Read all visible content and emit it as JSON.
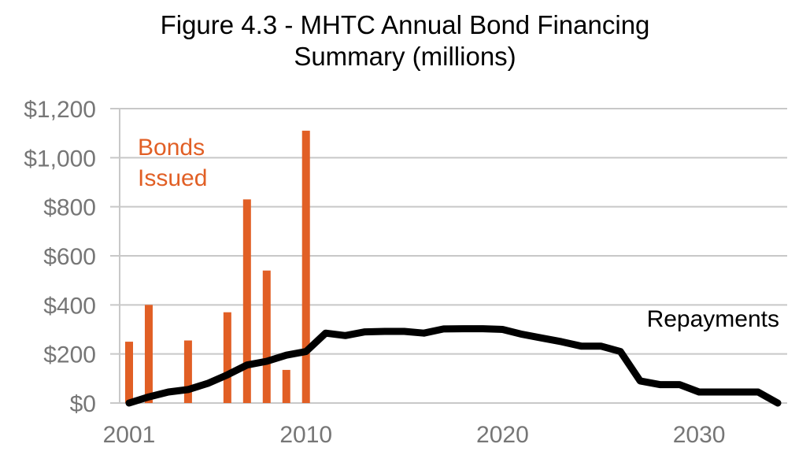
{
  "chart_data": {
    "type": "bar+line",
    "title_lines": [
      "Figure 4.3 - MHTC Annual Bond Financing",
      "Summary (millions)"
    ],
    "xlabel": "",
    "ylabel": "",
    "xlim": [
      2001,
      2034
    ],
    "ylim": [
      0,
      1200
    ],
    "y_ticks": [
      0,
      200,
      400,
      600,
      800,
      1000,
      1200
    ],
    "y_tick_labels": [
      "$0",
      "$200",
      "$400",
      "$600",
      "$800",
      "$1,000",
      "$1,200"
    ],
    "x_ticks": [
      2001,
      2010,
      2020,
      2030
    ],
    "x_tick_labels": [
      "2001",
      "2010",
      "2020",
      "2030"
    ],
    "grid": true,
    "legend": "none",
    "colors": {
      "bonds": "#e15f25",
      "repayments": "#000000",
      "grid": "#c8c8c8",
      "ticks": "#767676"
    },
    "bars": {
      "label_lines": [
        "Bonds",
        "Issued"
      ],
      "x": [
        2001,
        2002,
        2004,
        2006,
        2007,
        2008,
        2009,
        2010
      ],
      "values": [
        250,
        400,
        255,
        370,
        830,
        540,
        135,
        1110
      ]
    },
    "line": {
      "label": "Repayments",
      "x": [
        2001,
        2002,
        2003,
        2004,
        2005,
        2006,
        2007,
        2008,
        2009,
        2010,
        2011,
        2012,
        2013,
        2014,
        2015,
        2016,
        2017,
        2018,
        2019,
        2020,
        2021,
        2022,
        2023,
        2024,
        2025,
        2026,
        2027,
        2028,
        2029,
        2030,
        2031,
        2032,
        2033,
        2034
      ],
      "values": [
        0,
        25,
        45,
        55,
        80,
        115,
        155,
        170,
        195,
        210,
        285,
        275,
        290,
        292,
        292,
        285,
        302,
        303,
        303,
        300,
        280,
        265,
        250,
        232,
        232,
        210,
        90,
        75,
        75,
        45,
        45,
        45,
        45,
        0
      ]
    }
  }
}
